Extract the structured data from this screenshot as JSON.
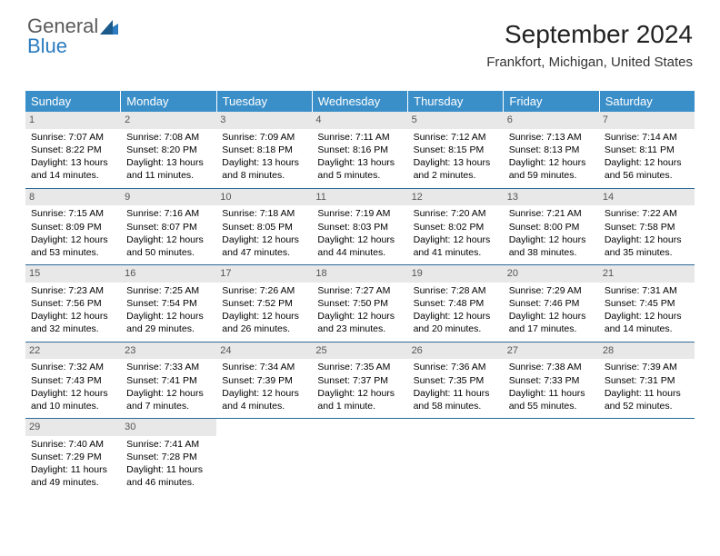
{
  "logo": {
    "word1": "General",
    "word2": "Blue"
  },
  "title": "September 2024",
  "location": "Frankfort, Michigan, United States",
  "colors": {
    "header_bg": "#3b8fc9",
    "header_text": "#ffffff",
    "daynum_bg": "#e8e8e8",
    "daynum_text": "#555555",
    "week_border": "#2a6a9a",
    "body_text": "#000000",
    "logo_gray": "#5a5a5a",
    "logo_blue": "#2a7bbf"
  },
  "typography": {
    "title_fontsize": 28,
    "location_fontsize": 15,
    "header_fontsize": 13,
    "daynum_fontsize": 11,
    "body_fontsize": 10.5
  },
  "day_headers": [
    "Sunday",
    "Monday",
    "Tuesday",
    "Wednesday",
    "Thursday",
    "Friday",
    "Saturday"
  ],
  "weeks": [
    [
      {
        "n": "1",
        "sr": "Sunrise: 7:07 AM",
        "ss": "Sunset: 8:22 PM",
        "d1": "Daylight: 13 hours",
        "d2": "and 14 minutes."
      },
      {
        "n": "2",
        "sr": "Sunrise: 7:08 AM",
        "ss": "Sunset: 8:20 PM",
        "d1": "Daylight: 13 hours",
        "d2": "and 11 minutes."
      },
      {
        "n": "3",
        "sr": "Sunrise: 7:09 AM",
        "ss": "Sunset: 8:18 PM",
        "d1": "Daylight: 13 hours",
        "d2": "and 8 minutes."
      },
      {
        "n": "4",
        "sr": "Sunrise: 7:11 AM",
        "ss": "Sunset: 8:16 PM",
        "d1": "Daylight: 13 hours",
        "d2": "and 5 minutes."
      },
      {
        "n": "5",
        "sr": "Sunrise: 7:12 AM",
        "ss": "Sunset: 8:15 PM",
        "d1": "Daylight: 13 hours",
        "d2": "and 2 minutes."
      },
      {
        "n": "6",
        "sr": "Sunrise: 7:13 AM",
        "ss": "Sunset: 8:13 PM",
        "d1": "Daylight: 12 hours",
        "d2": "and 59 minutes."
      },
      {
        "n": "7",
        "sr": "Sunrise: 7:14 AM",
        "ss": "Sunset: 8:11 PM",
        "d1": "Daylight: 12 hours",
        "d2": "and 56 minutes."
      }
    ],
    [
      {
        "n": "8",
        "sr": "Sunrise: 7:15 AM",
        "ss": "Sunset: 8:09 PM",
        "d1": "Daylight: 12 hours",
        "d2": "and 53 minutes."
      },
      {
        "n": "9",
        "sr": "Sunrise: 7:16 AM",
        "ss": "Sunset: 8:07 PM",
        "d1": "Daylight: 12 hours",
        "d2": "and 50 minutes."
      },
      {
        "n": "10",
        "sr": "Sunrise: 7:18 AM",
        "ss": "Sunset: 8:05 PM",
        "d1": "Daylight: 12 hours",
        "d2": "and 47 minutes."
      },
      {
        "n": "11",
        "sr": "Sunrise: 7:19 AM",
        "ss": "Sunset: 8:03 PM",
        "d1": "Daylight: 12 hours",
        "d2": "and 44 minutes."
      },
      {
        "n": "12",
        "sr": "Sunrise: 7:20 AM",
        "ss": "Sunset: 8:02 PM",
        "d1": "Daylight: 12 hours",
        "d2": "and 41 minutes."
      },
      {
        "n": "13",
        "sr": "Sunrise: 7:21 AM",
        "ss": "Sunset: 8:00 PM",
        "d1": "Daylight: 12 hours",
        "d2": "and 38 minutes."
      },
      {
        "n": "14",
        "sr": "Sunrise: 7:22 AM",
        "ss": "Sunset: 7:58 PM",
        "d1": "Daylight: 12 hours",
        "d2": "and 35 minutes."
      }
    ],
    [
      {
        "n": "15",
        "sr": "Sunrise: 7:23 AM",
        "ss": "Sunset: 7:56 PM",
        "d1": "Daylight: 12 hours",
        "d2": "and 32 minutes."
      },
      {
        "n": "16",
        "sr": "Sunrise: 7:25 AM",
        "ss": "Sunset: 7:54 PM",
        "d1": "Daylight: 12 hours",
        "d2": "and 29 minutes."
      },
      {
        "n": "17",
        "sr": "Sunrise: 7:26 AM",
        "ss": "Sunset: 7:52 PM",
        "d1": "Daylight: 12 hours",
        "d2": "and 26 minutes."
      },
      {
        "n": "18",
        "sr": "Sunrise: 7:27 AM",
        "ss": "Sunset: 7:50 PM",
        "d1": "Daylight: 12 hours",
        "d2": "and 23 minutes."
      },
      {
        "n": "19",
        "sr": "Sunrise: 7:28 AM",
        "ss": "Sunset: 7:48 PM",
        "d1": "Daylight: 12 hours",
        "d2": "and 20 minutes."
      },
      {
        "n": "20",
        "sr": "Sunrise: 7:29 AM",
        "ss": "Sunset: 7:46 PM",
        "d1": "Daylight: 12 hours",
        "d2": "and 17 minutes."
      },
      {
        "n": "21",
        "sr": "Sunrise: 7:31 AM",
        "ss": "Sunset: 7:45 PM",
        "d1": "Daylight: 12 hours",
        "d2": "and 14 minutes."
      }
    ],
    [
      {
        "n": "22",
        "sr": "Sunrise: 7:32 AM",
        "ss": "Sunset: 7:43 PM",
        "d1": "Daylight: 12 hours",
        "d2": "and 10 minutes."
      },
      {
        "n": "23",
        "sr": "Sunrise: 7:33 AM",
        "ss": "Sunset: 7:41 PM",
        "d1": "Daylight: 12 hours",
        "d2": "and 7 minutes."
      },
      {
        "n": "24",
        "sr": "Sunrise: 7:34 AM",
        "ss": "Sunset: 7:39 PM",
        "d1": "Daylight: 12 hours",
        "d2": "and 4 minutes."
      },
      {
        "n": "25",
        "sr": "Sunrise: 7:35 AM",
        "ss": "Sunset: 7:37 PM",
        "d1": "Daylight: 12 hours",
        "d2": "and 1 minute."
      },
      {
        "n": "26",
        "sr": "Sunrise: 7:36 AM",
        "ss": "Sunset: 7:35 PM",
        "d1": "Daylight: 11 hours",
        "d2": "and 58 minutes."
      },
      {
        "n": "27",
        "sr": "Sunrise: 7:38 AM",
        "ss": "Sunset: 7:33 PM",
        "d1": "Daylight: 11 hours",
        "d2": "and 55 minutes."
      },
      {
        "n": "28",
        "sr": "Sunrise: 7:39 AM",
        "ss": "Sunset: 7:31 PM",
        "d1": "Daylight: 11 hours",
        "d2": "and 52 minutes."
      }
    ],
    [
      {
        "n": "29",
        "sr": "Sunrise: 7:40 AM",
        "ss": "Sunset: 7:29 PM",
        "d1": "Daylight: 11 hours",
        "d2": "and 49 minutes."
      },
      {
        "n": "30",
        "sr": "Sunrise: 7:41 AM",
        "ss": "Sunset: 7:28 PM",
        "d1": "Daylight: 11 hours",
        "d2": "and 46 minutes."
      },
      {
        "empty": true
      },
      {
        "empty": true
      },
      {
        "empty": true
      },
      {
        "empty": true
      },
      {
        "empty": true
      }
    ]
  ]
}
